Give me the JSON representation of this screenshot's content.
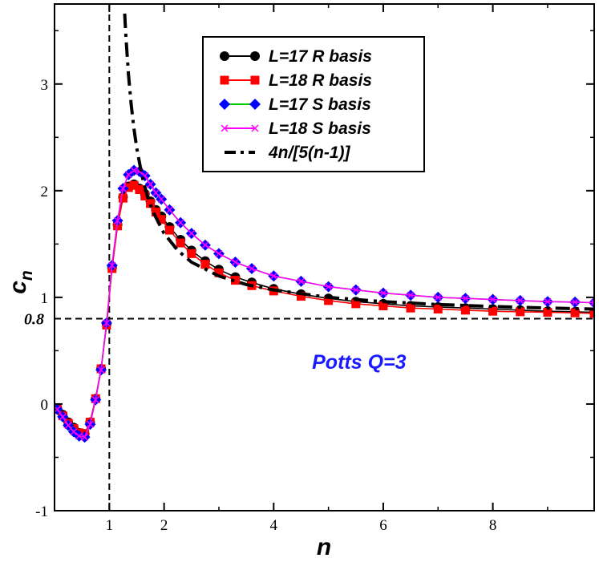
{
  "chart_data": {
    "type": "line",
    "title": "",
    "xlabel": "n",
    "ylabel": "c",
    "ylabel_subscript": "n",
    "xlim": [
      0.0,
      9.85
    ],
    "ylim": [
      -1.0,
      3.75
    ],
    "xticks": [
      1,
      2,
      4,
      6,
      8
    ],
    "xtick_labels": [
      "1",
      "2",
      "4",
      "6",
      "8"
    ],
    "yticks": [
      -1,
      0,
      1,
      2,
      3
    ],
    "ytick_labels": [
      "-1",
      "0",
      "1",
      "2",
      "3"
    ],
    "grid": false,
    "legend_position": "top-center",
    "annotation": {
      "text": "Potts Q=3",
      "x": 4.7,
      "y": 0.33,
      "color": "#1a1aff"
    },
    "reference_lines": [
      {
        "orientation": "vertical",
        "value": 1.0,
        "style": "dashed"
      },
      {
        "orientation": "horizontal",
        "value": 0.8,
        "style": "dashed",
        "label": "0.8"
      }
    ],
    "series": [
      {
        "name": "L=17 R basis",
        "color": "#000000",
        "line_color": "#000000",
        "marker": "circle",
        "x": [
          0.05,
          0.15,
          0.25,
          0.35,
          0.45,
          0.55,
          0.65,
          0.75,
          0.85,
          0.95,
          1.05,
          1.15,
          1.25,
          1.35,
          1.45,
          1.55,
          1.65,
          1.75,
          1.85,
          1.95,
          2.1,
          2.3,
          2.5,
          2.75,
          3.0,
          3.3,
          3.6,
          4.0,
          4.5,
          5.0,
          5.5,
          6.0,
          6.5,
          7.0,
          7.5,
          8.0,
          8.5,
          9.0,
          9.5,
          9.85
        ],
        "y": [
          -0.04,
          -0.1,
          -0.17,
          -0.22,
          -0.27,
          -0.28,
          -0.17,
          0.05,
          0.33,
          0.75,
          1.28,
          1.68,
          1.94,
          2.04,
          2.06,
          2.02,
          1.97,
          1.9,
          1.82,
          1.76,
          1.66,
          1.54,
          1.44,
          1.34,
          1.26,
          1.19,
          1.14,
          1.08,
          1.03,
          0.99,
          0.96,
          0.94,
          0.92,
          0.91,
          0.9,
          0.89,
          0.88,
          0.87,
          0.865,
          0.86
        ]
      },
      {
        "name": "L=18 R basis",
        "color": "#ff0000",
        "line_color": "#ff0000",
        "marker": "square",
        "x": [
          0.05,
          0.15,
          0.25,
          0.35,
          0.45,
          0.55,
          0.65,
          0.75,
          0.85,
          0.95,
          1.05,
          1.15,
          1.25,
          1.35,
          1.45,
          1.55,
          1.65,
          1.75,
          1.85,
          1.95,
          2.1,
          2.3,
          2.5,
          2.75,
          3.0,
          3.3,
          3.6,
          4.0,
          4.5,
          5.0,
          5.5,
          6.0,
          6.5,
          7.0,
          7.5,
          8.0,
          8.5,
          9.0,
          9.5,
          9.85
        ],
        "y": [
          -0.05,
          -0.11,
          -0.18,
          -0.23,
          -0.27,
          -0.28,
          -0.17,
          0.05,
          0.33,
          0.74,
          1.27,
          1.67,
          1.93,
          2.03,
          2.05,
          2.01,
          1.95,
          1.88,
          1.8,
          1.73,
          1.63,
          1.51,
          1.41,
          1.31,
          1.23,
          1.16,
          1.11,
          1.06,
          1.01,
          0.97,
          0.94,
          0.92,
          0.9,
          0.89,
          0.88,
          0.87,
          0.865,
          0.86,
          0.855,
          0.85
        ]
      },
      {
        "name": "L=17 S basis",
        "color": "#0000ff",
        "line_color": "#00cc00",
        "marker": "diamond",
        "x": [
          0.05,
          0.15,
          0.25,
          0.35,
          0.45,
          0.55,
          0.65,
          0.75,
          0.85,
          0.95,
          1.05,
          1.15,
          1.25,
          1.35,
          1.45,
          1.55,
          1.65,
          1.75,
          1.85,
          1.95,
          2.1,
          2.3,
          2.5,
          2.75,
          3.0,
          3.3,
          3.6,
          4.0,
          4.5,
          5.0,
          5.5,
          6.0,
          6.5,
          7.0,
          7.5,
          8.0,
          8.5,
          9.0,
          9.5,
          9.85
        ],
        "y": [
          -0.05,
          -0.12,
          -0.2,
          -0.26,
          -0.3,
          -0.31,
          -0.19,
          0.04,
          0.32,
          0.76,
          1.3,
          1.72,
          2.02,
          2.15,
          2.19,
          2.18,
          2.14,
          2.06,
          1.98,
          1.92,
          1.82,
          1.7,
          1.6,
          1.49,
          1.41,
          1.33,
          1.27,
          1.2,
          1.15,
          1.1,
          1.07,
          1.04,
          1.02,
          1.0,
          0.99,
          0.98,
          0.97,
          0.96,
          0.955,
          0.95
        ]
      },
      {
        "name": "L=18 S basis",
        "color": "#ff00ff",
        "line_color": "#ff00ff",
        "marker": "cross",
        "x": [
          0.05,
          0.15,
          0.25,
          0.35,
          0.45,
          0.55,
          0.65,
          0.75,
          0.85,
          0.95,
          1.05,
          1.15,
          1.25,
          1.35,
          1.45,
          1.55,
          1.65,
          1.75,
          1.85,
          1.95,
          2.1,
          2.3,
          2.5,
          2.75,
          3.0,
          3.3,
          3.6,
          4.0,
          4.5,
          5.0,
          5.5,
          6.0,
          6.5,
          7.0,
          7.5,
          8.0,
          8.5,
          9.0,
          9.5,
          9.85
        ],
        "y": [
          -0.05,
          -0.12,
          -0.2,
          -0.26,
          -0.3,
          -0.31,
          -0.19,
          0.04,
          0.32,
          0.76,
          1.3,
          1.72,
          2.02,
          2.15,
          2.19,
          2.18,
          2.14,
          2.06,
          1.98,
          1.92,
          1.82,
          1.7,
          1.6,
          1.49,
          1.41,
          1.33,
          1.27,
          1.2,
          1.15,
          1.1,
          1.07,
          1.04,
          1.02,
          1.0,
          0.99,
          0.98,
          0.97,
          0.96,
          0.955,
          0.95
        ]
      },
      {
        "name": "4n/[5(n-1)]",
        "color": "#000000",
        "line_color": "#000000",
        "marker": "none",
        "style": "dash-dot",
        "formula": "4n/[5(n-1)]",
        "x": [
          1.28,
          1.3,
          1.35,
          1.4,
          1.45,
          1.5,
          1.6,
          1.7,
          1.8,
          2.0,
          2.25,
          2.5,
          3.0,
          3.5,
          4.0,
          5.0,
          6.0,
          7.0,
          8.0,
          9.0,
          9.85
        ],
        "y": [
          3.66,
          3.47,
          3.09,
          2.8,
          2.58,
          2.4,
          2.13,
          1.94,
          1.8,
          1.6,
          1.44,
          1.33,
          1.2,
          1.12,
          1.07,
          1.0,
          0.96,
          0.933,
          0.914,
          0.9,
          0.89
        ]
      }
    ]
  }
}
